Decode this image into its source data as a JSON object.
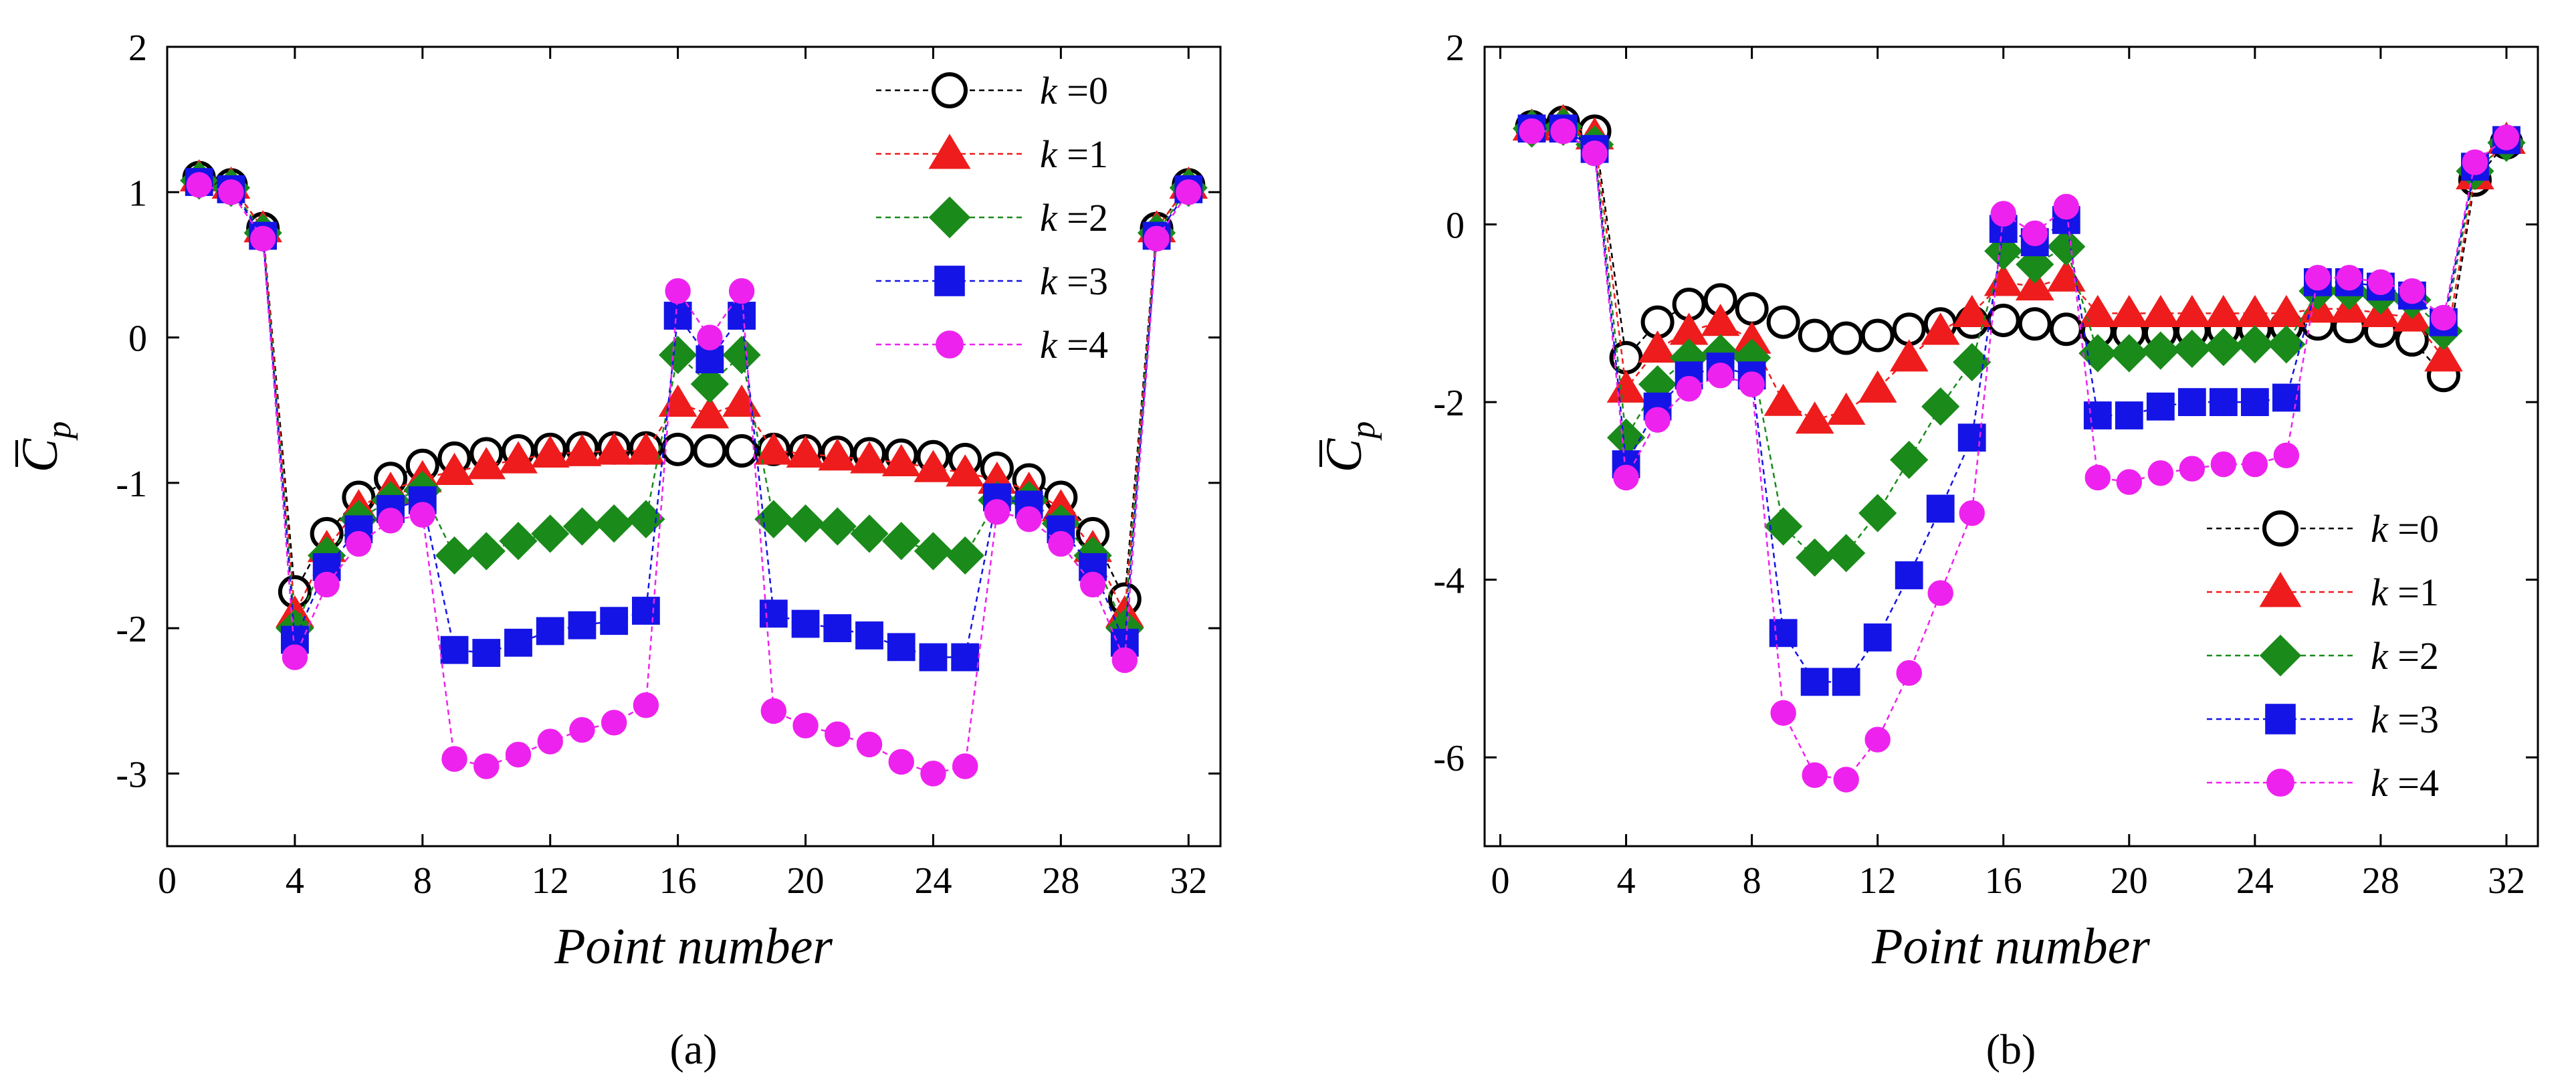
{
  "figure": {
    "panel_labels": [
      "(a)",
      "(b)"
    ]
  },
  "colors": {
    "k0": "#000000",
    "k1": "#ee1c1c",
    "k2": "#1a8a1a",
    "k3": "#1414e6",
    "k4": "#ee22ee"
  },
  "chart_data": [
    {
      "type": "line",
      "panel": "(a)",
      "xlabel": "Point number",
      "ylabel_main": "C",
      "ylabel_sub": "p",
      "xlim": [
        0,
        33
      ],
      "ylim": [
        -3.5,
        2
      ],
      "xticks": [
        0,
        4,
        8,
        12,
        16,
        20,
        24,
        28,
        32
      ],
      "xtick_labels": [
        "0",
        "4",
        "8",
        "12",
        "16",
        "20",
        "24",
        "28",
        "32"
      ],
      "yticks": [
        -3,
        -2,
        -1,
        0,
        1,
        2
      ],
      "ytick_labels": [
        "-3",
        "-2",
        "-1",
        "0",
        "1",
        "2"
      ],
      "legend_position": "top-right",
      "series": [
        {
          "name": "k =0",
          "k_label": "k",
          "k_value": "=0",
          "marker": "circle-open",
          "color": "#000000",
          "x": [
            1,
            2,
            3,
            4,
            5,
            6,
            7,
            8,
            9,
            10,
            11,
            12,
            13,
            14,
            15,
            16,
            17,
            18,
            19,
            20,
            21,
            22,
            23,
            24,
            25,
            26,
            27,
            28,
            29,
            30,
            31,
            32
          ],
          "y": [
            1.1,
            1.05,
            0.75,
            -1.75,
            -1.35,
            -1.1,
            -0.97,
            -0.88,
            -0.83,
            -0.8,
            -0.78,
            -0.77,
            -0.76,
            -0.76,
            -0.76,
            -0.77,
            -0.78,
            -0.78,
            -0.77,
            -0.78,
            -0.79,
            -0.8,
            -0.81,
            -0.82,
            -0.84,
            -0.9,
            -0.98,
            -1.1,
            -1.35,
            -1.8,
            0.75,
            1.05
          ]
        },
        {
          "name": "k =1",
          "k_label": "k",
          "k_value": "=1",
          "marker": "triangle",
          "color": "#ee1c1c",
          "x": [
            1,
            2,
            3,
            4,
            5,
            6,
            7,
            8,
            9,
            10,
            11,
            12,
            13,
            14,
            15,
            16,
            17,
            18,
            19,
            20,
            21,
            22,
            23,
            24,
            25,
            26,
            27,
            28,
            29,
            30,
            31,
            32
          ],
          "y": [
            1.1,
            1.05,
            0.75,
            -1.9,
            -1.45,
            -1.17,
            -1.05,
            -0.97,
            -0.92,
            -0.88,
            -0.84,
            -0.8,
            -0.79,
            -0.78,
            -0.78,
            -0.45,
            -0.53,
            -0.45,
            -0.78,
            -0.8,
            -0.82,
            -0.84,
            -0.86,
            -0.9,
            -0.93,
            -0.98,
            -1.05,
            -1.17,
            -1.45,
            -1.9,
            0.75,
            1.05
          ]
        },
        {
          "name": "k =2",
          "k_label": "k",
          "k_value": "=2",
          "marker": "diamond",
          "color": "#1a8a1a",
          "x": [
            1,
            2,
            3,
            4,
            5,
            6,
            7,
            8,
            9,
            10,
            11,
            12,
            13,
            14,
            15,
            16,
            17,
            18,
            19,
            20,
            21,
            22,
            23,
            24,
            25,
            26,
            27,
            28,
            29,
            30,
            31,
            32
          ],
          "y": [
            1.08,
            1.03,
            0.72,
            -2.0,
            -1.5,
            -1.25,
            -1.12,
            -1.05,
            -1.5,
            -1.47,
            -1.4,
            -1.35,
            -1.3,
            -1.28,
            -1.25,
            -0.12,
            -0.32,
            -0.12,
            -1.25,
            -1.28,
            -1.3,
            -1.35,
            -1.4,
            -1.47,
            -1.5,
            -1.12,
            -1.12,
            -1.28,
            -1.5,
            -2.0,
            0.72,
            1.03
          ]
        },
        {
          "name": "k =3",
          "k_label": "k",
          "k_value": "=3",
          "marker": "square",
          "color": "#1414e6",
          "x": [
            1,
            2,
            3,
            4,
            5,
            6,
            7,
            8,
            9,
            10,
            11,
            12,
            13,
            14,
            15,
            16,
            17,
            18,
            19,
            20,
            21,
            22,
            23,
            24,
            25,
            26,
            27,
            28,
            29,
            30,
            31,
            32
          ],
          "y": [
            1.07,
            1.02,
            0.7,
            -2.08,
            -1.58,
            -1.32,
            -1.18,
            -1.12,
            -2.15,
            -2.17,
            -2.1,
            -2.02,
            -1.98,
            -1.95,
            -1.88,
            0.15,
            -0.15,
            0.15,
            -1.9,
            -1.97,
            -2.0,
            -2.05,
            -2.13,
            -2.2,
            -2.2,
            -1.1,
            -1.15,
            -1.32,
            -1.58,
            -2.1,
            0.7,
            1.02
          ]
        },
        {
          "name": "k =4",
          "k_label": "k",
          "k_value": "=4",
          "marker": "circle-filled",
          "color": "#ee22ee",
          "x": [
            1,
            2,
            3,
            4,
            5,
            6,
            7,
            8,
            9,
            10,
            11,
            12,
            13,
            14,
            15,
            16,
            17,
            18,
            19,
            20,
            21,
            22,
            23,
            24,
            25,
            26,
            27,
            28,
            29,
            30,
            31,
            32
          ],
          "y": [
            1.05,
            1.0,
            0.68,
            -2.2,
            -1.7,
            -1.42,
            -1.26,
            -1.22,
            -2.9,
            -2.95,
            -2.87,
            -2.78,
            -2.7,
            -2.65,
            -2.53,
            0.32,
            0.0,
            0.32,
            -2.57,
            -2.67,
            -2.73,
            -2.8,
            -2.92,
            -3.0,
            -2.95,
            -1.2,
            -1.25,
            -1.42,
            -1.7,
            -2.22,
            0.68,
            1.0
          ]
        }
      ]
    },
    {
      "type": "line",
      "panel": "(b)",
      "xlabel": "Point number",
      "ylabel_main": "C",
      "ylabel_sub": "p",
      "xlim": [
        -0.5,
        33
      ],
      "ylim": [
        -7,
        2
      ],
      "xticks": [
        0,
        4,
        8,
        12,
        16,
        20,
        24,
        28,
        32
      ],
      "xtick_labels": [
        "0",
        "4",
        "8",
        "12",
        "16",
        "20",
        "24",
        "28",
        "32"
      ],
      "yticks": [
        -6,
        -4,
        -2,
        0,
        2
      ],
      "ytick_labels": [
        "-6",
        "-4",
        "-2",
        "0",
        "2"
      ],
      "legend_position": "bottom-right",
      "series": [
        {
          "name": "k =0",
          "k_label": "k",
          "k_value": "=0",
          "marker": "circle-open",
          "color": "#000000",
          "x": [
            1,
            2,
            3,
            4,
            5,
            6,
            7,
            8,
            9,
            10,
            11,
            12,
            13,
            14,
            15,
            16,
            17,
            18,
            19,
            20,
            21,
            22,
            23,
            24,
            25,
            26,
            27,
            28,
            29,
            30,
            31,
            32
          ],
          "y": [
            1.1,
            1.15,
            1.05,
            -1.5,
            -1.1,
            -0.9,
            -0.85,
            -0.95,
            -1.1,
            -1.25,
            -1.28,
            -1.25,
            -1.18,
            -1.12,
            -1.1,
            -1.08,
            -1.12,
            -1.18,
            -1.2,
            -1.22,
            -1.22,
            -1.2,
            -1.18,
            -1.18,
            -1.15,
            -1.12,
            -1.15,
            -1.2,
            -1.3,
            -1.7,
            0.5,
            0.92
          ]
        },
        {
          "name": "k =1",
          "k_label": "k",
          "k_value": "=1",
          "marker": "triangle",
          "color": "#ee1c1c",
          "x": [
            1,
            2,
            3,
            4,
            5,
            6,
            7,
            8,
            9,
            10,
            11,
            12,
            13,
            14,
            15,
            16,
            17,
            18,
            19,
            20,
            21,
            22,
            23,
            24,
            25,
            26,
            27,
            28,
            29,
            30,
            31,
            32
          ],
          "y": [
            1.1,
            1.15,
            1.0,
            -1.85,
            -1.4,
            -1.2,
            -1.1,
            -1.3,
            -2.0,
            -2.2,
            -2.1,
            -1.85,
            -1.5,
            -1.2,
            -1.0,
            -0.65,
            -0.7,
            -0.6,
            -1.0,
            -1.0,
            -1.0,
            -1.0,
            -1.0,
            -1.0,
            -1.0,
            -0.95,
            -0.95,
            -1.0,
            -1.05,
            -1.5,
            0.55,
            0.95
          ]
        },
        {
          "name": "k =2",
          "k_label": "k",
          "k_value": "=2",
          "marker": "diamond",
          "color": "#1a8a1a",
          "x": [
            1,
            2,
            3,
            4,
            5,
            6,
            7,
            8,
            9,
            10,
            11,
            12,
            13,
            14,
            15,
            16,
            17,
            18,
            19,
            20,
            21,
            22,
            23,
            24,
            25,
            26,
            27,
            28,
            29,
            30,
            31,
            32
          ],
          "y": [
            1.08,
            1.1,
            0.9,
            -2.4,
            -1.8,
            -1.5,
            -1.45,
            -1.5,
            -3.4,
            -3.75,
            -3.7,
            -3.25,
            -2.65,
            -2.05,
            -1.55,
            -0.3,
            -0.45,
            -0.25,
            -1.45,
            -1.45,
            -1.42,
            -1.4,
            -1.38,
            -1.35,
            -1.35,
            -0.75,
            -0.75,
            -0.8,
            -0.85,
            -1.2,
            0.6,
            0.92
          ]
        },
        {
          "name": "k =3",
          "k_label": "k",
          "k_value": "=3",
          "marker": "square",
          "color": "#1414e6",
          "x": [
            1,
            2,
            3,
            4,
            5,
            6,
            7,
            8,
            9,
            10,
            11,
            12,
            13,
            14,
            15,
            16,
            17,
            18,
            19,
            20,
            21,
            22,
            23,
            24,
            25,
            26,
            27,
            28,
            29,
            30,
            31,
            32
          ],
          "y": [
            1.08,
            1.08,
            0.85,
            -2.7,
            -2.05,
            -1.7,
            -1.6,
            -1.7,
            -4.6,
            -5.15,
            -5.15,
            -4.65,
            -3.95,
            -3.2,
            -2.4,
            -0.05,
            -0.2,
            0.05,
            -2.15,
            -2.15,
            -2.05,
            -2.0,
            -2.0,
            -2.0,
            -1.95,
            -0.65,
            -0.65,
            -0.7,
            -0.8,
            -1.1,
            0.65,
            0.95
          ]
        },
        {
          "name": "k =4",
          "k_label": "k",
          "k_value": "=4",
          "marker": "circle-filled",
          "color": "#ee22ee",
          "x": [
            1,
            2,
            3,
            4,
            5,
            6,
            7,
            8,
            9,
            10,
            11,
            12,
            13,
            14,
            15,
            16,
            17,
            18,
            19,
            20,
            21,
            22,
            23,
            24,
            25,
            26,
            27,
            28,
            29,
            30,
            31,
            32
          ],
          "y": [
            1.05,
            1.05,
            0.8,
            -2.85,
            -2.2,
            -1.85,
            -1.7,
            -1.8,
            -5.5,
            -6.2,
            -6.25,
            -5.8,
            -5.05,
            -4.15,
            -3.25,
            0.12,
            -0.1,
            0.2,
            -2.85,
            -2.9,
            -2.8,
            -2.75,
            -2.7,
            -2.7,
            -2.6,
            -0.6,
            -0.6,
            -0.65,
            -0.75,
            -1.05,
            0.7,
            0.98
          ]
        }
      ]
    }
  ]
}
